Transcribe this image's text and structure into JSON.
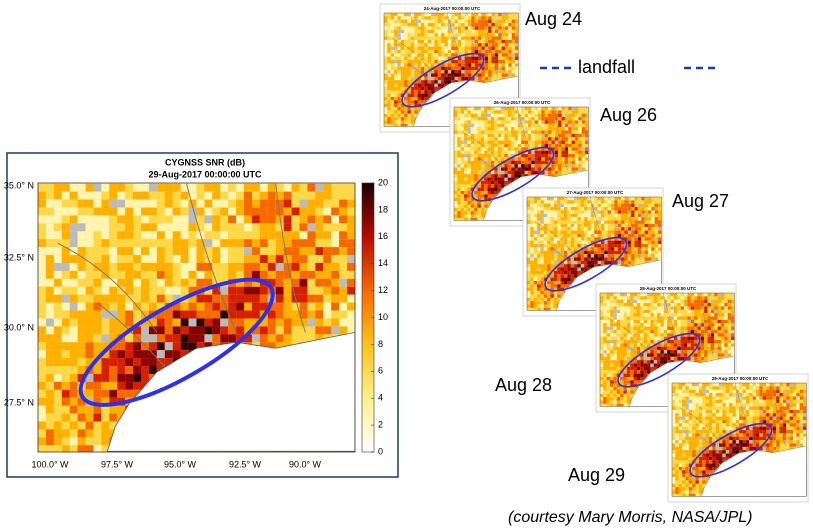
{
  "slide": {
    "aug_labels": [
      "Aug 24",
      "Aug 26",
      "Aug 27",
      "Aug 28",
      "Aug 29"
    ],
    "legend": "landfall",
    "credit": "(courtesy Mary Morris, NASA/JPL)",
    "thumbnail_titles": [
      "24-Aug-2017 00:00:00 UTC",
      "26-Aug-2017 00:00:00 UTC",
      "27-Aug-2017 00:00:00 UTC",
      "28-Aug-2017 00:00:00 UTC",
      "29-Aug-2017 00:00:00 UTC"
    ]
  },
  "main_map": {
    "title": "CYGNSS SNR (dB)",
    "subtitle": "29-Aug-2017 00:00:00 UTC",
    "lat_labels": [
      "35.0° N",
      "32.5° N",
      "30.0° N",
      "27.5° N"
    ],
    "lon_labels": [
      "100.0° W",
      "97.5° W",
      "95.0° W",
      "92.5° W",
      "90.0° W"
    ],
    "colorbar": {
      "range": [
        0,
        20
      ],
      "ticks": [
        0,
        2,
        4,
        6,
        8,
        10,
        12,
        14,
        16,
        18,
        20
      ]
    }
  }
}
